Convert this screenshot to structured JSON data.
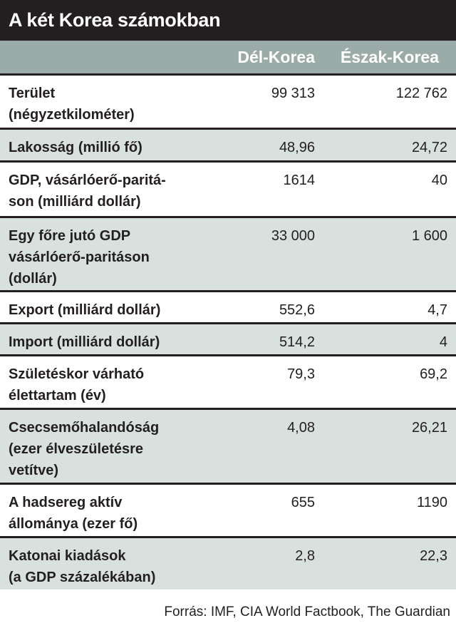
{
  "title": "A két Korea számokban",
  "columns": [
    "Dél-Korea",
    "Észak-Korea"
  ],
  "rows": [
    {
      "label": "Terület\n(négyzetkilométer)",
      "south": "99 313",
      "north": "122 762"
    },
    {
      "label": "Lakosság (millió fő)",
      "south": "48,96",
      "north": "24,72"
    },
    {
      "label": "GDP, vásárlóerő-paritá-\nson (milliárd dollár)",
      "south": "1614",
      "north": "40"
    },
    {
      "label": "Egy főre jutó GDP\nvásárlóerő-paritáson\n(dollár)",
      "south": "33 000",
      "north": "1 600"
    },
    {
      "label": "Export (milliárd dollár)",
      "south": "552,6",
      "north": "4,7"
    },
    {
      "label": "Import (milliárd dollár)",
      "south": "514,2",
      "north": "4"
    },
    {
      "label": "Születéskor várható\nélettartam (év)",
      "south": "79,3",
      "north": "69,2"
    },
    {
      "label": "Csecsemőhalandóság\n(ezer élveszületésre\nvetítve)",
      "south": "4,08",
      "north": "26,21"
    },
    {
      "label": "A hadsereg aktív\nállománya (ezer fő)",
      "south": "655",
      "north": "1190"
    },
    {
      "label": "Katonai kiadások\n(a GDP százalékában)",
      "south": "2,8",
      "north": "22,3"
    }
  ],
  "source": "Forrás: IMF, CIA World Factbook, The Guardian",
  "chart_data": {
    "type": "table",
    "title": "A két Korea számokban",
    "columns": [
      "",
      "Dél-Korea",
      "Észak-Korea"
    ],
    "rows": [
      [
        "Terület (négyzetkilométer)",
        "99 313",
        "122 762"
      ],
      [
        "Lakosság (millió fő)",
        "48,96",
        "24,72"
      ],
      [
        "GDP, vásárlóerő-paritáson (milliárd dollár)",
        "1614",
        "40"
      ],
      [
        "Egy főre jutó GDP vásárlóerő-paritáson (dollár)",
        "33 000",
        "1 600"
      ],
      [
        "Export (milliárd dollár)",
        "552,6",
        "4,7"
      ],
      [
        "Import (milliárd dollár)",
        "514,2",
        "4"
      ],
      [
        "Születéskor várható élettartam (év)",
        "79,3",
        "69,2"
      ],
      [
        "Csecsemőhalandóság (ezer élveszületésre vetítve)",
        "4,08",
        "26,21"
      ],
      [
        "A hadsereg aktív állománya (ezer fő)",
        "655",
        "1190"
      ],
      [
        "Katonai kiadások (a GDP százalékában)",
        "2,8",
        "22,3"
      ]
    ]
  },
  "colors": {
    "title_bg": "#231f20",
    "header_bg": "#9aaba8",
    "stripe": "#d9e1df"
  }
}
